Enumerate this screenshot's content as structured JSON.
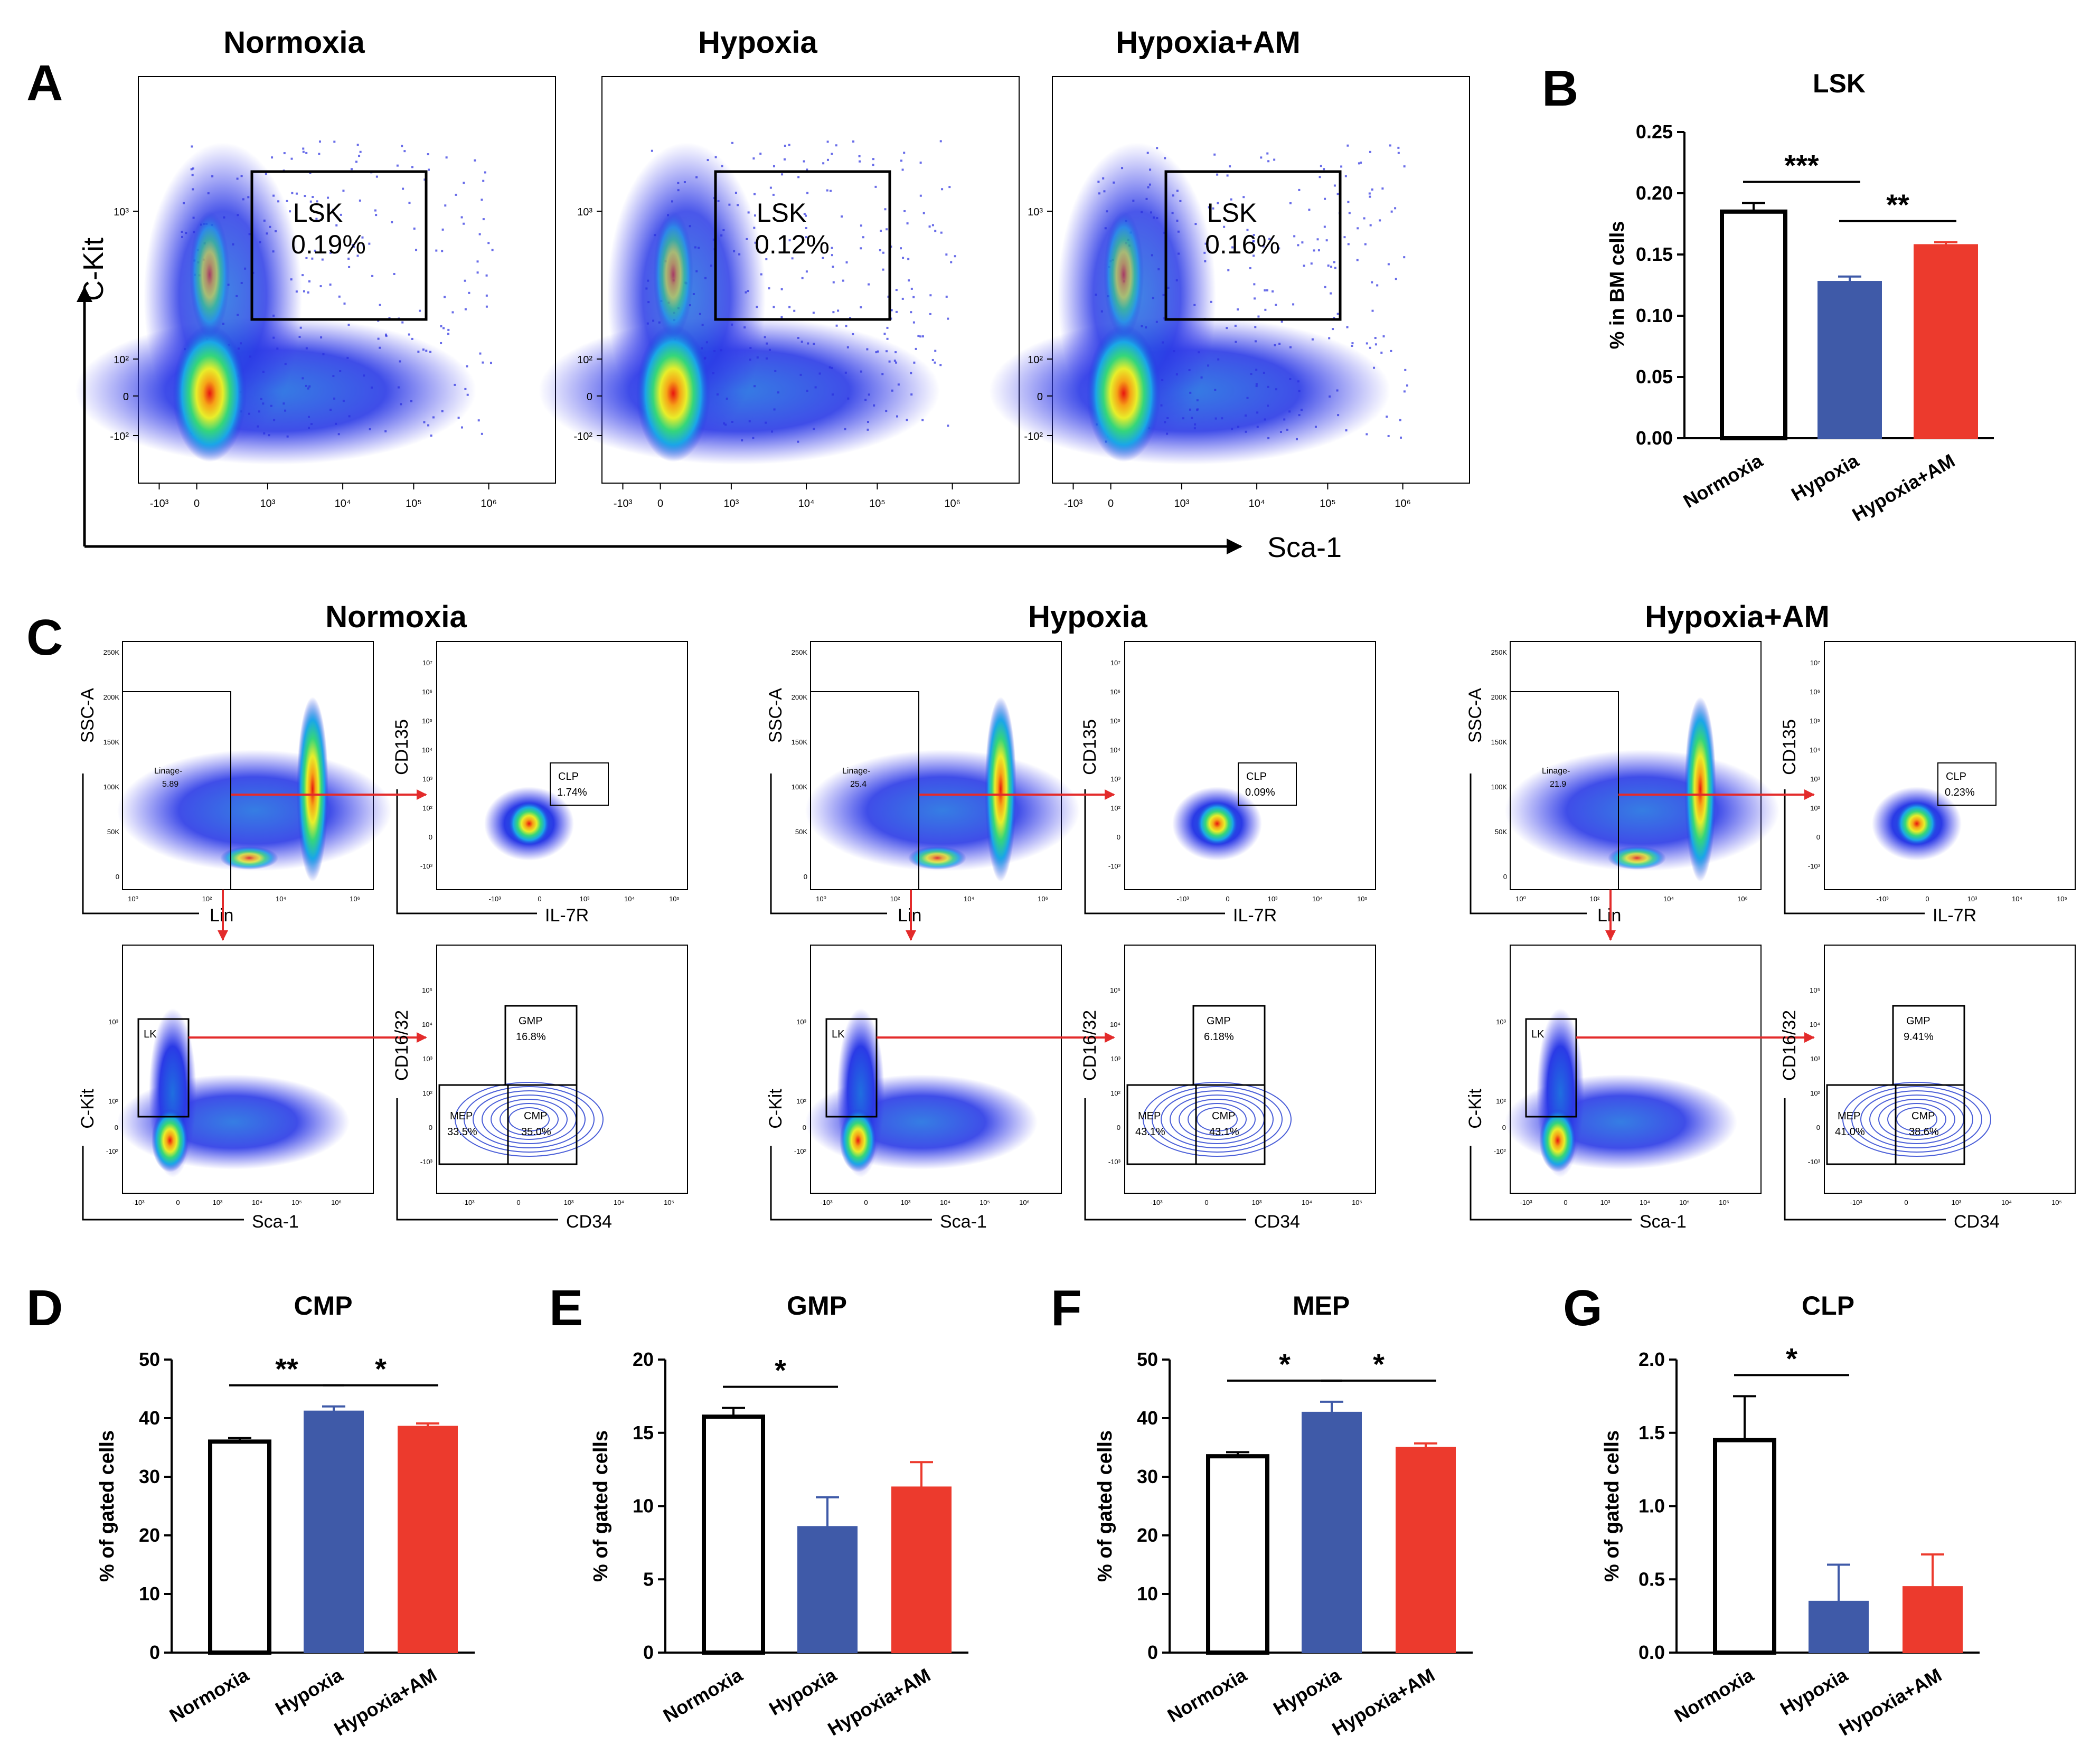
{
  "figure": {
    "panels": [
      "A",
      "B",
      "C",
      "D",
      "E",
      "F",
      "G"
    ],
    "colors": {
      "normoxia": "#ffffff",
      "hypoxia": "#3f5aa8",
      "hypoxia_am": "#ec3a2d",
      "gate_arrow": "#e32b2b",
      "contour": "#4b5fd8"
    }
  },
  "panel_a": {
    "letter": "A",
    "x_axis_label": "Sca-1",
    "y_axis_label": "C-Kit",
    "x_ticks": [
      "-10³",
      "0",
      "10³",
      "10⁴",
      "10⁵",
      "10⁶"
    ],
    "y_ticks": [
      "10³",
      "10²",
      "0",
      "-10²"
    ],
    "plots": [
      {
        "title": "Normoxia",
        "gate_name": "LSK",
        "gate_value": "0.19%"
      },
      {
        "title": "Hypoxia",
        "gate_name": "LSK",
        "gate_value": "0.12%"
      },
      {
        "title": "Hypoxia+AM",
        "gate_name": "LSK",
        "gate_value": "0.16%"
      }
    ]
  },
  "panel_c": {
    "letter": "C",
    "groups": [
      {
        "title": "Normoxia",
        "lineage_value": "5.89",
        "clp": "1.74%",
        "gmp": "16.8%",
        "mep": "33.5%",
        "cmp": "35.0%"
      },
      {
        "title": "Hypoxia",
        "lineage_value": "25.4",
        "clp": "0.09%",
        "gmp": "6.18%",
        "mep": "43.1%",
        "cmp": "43.1%"
      },
      {
        "title": "Hypoxia+AM",
        "lineage_value": "21.9",
        "clp": "0.23%",
        "gmp": "9.41%",
        "mep": "41.0%",
        "cmp": "38.6%"
      }
    ],
    "labels": {
      "ssc": "SSC-A",
      "lin": "Lin",
      "cd135": "CD135",
      "il7r": "IL-7R",
      "ckit": "C-Kit",
      "sca1": "Sca-1",
      "cd1632": "CD16/32",
      "cd34": "CD34",
      "lineage_gate": "Linage-",
      "clp_gate": "CLP",
      "lk_gate": "LK",
      "gmp_gate": "GMP",
      "mep_gate": "MEP",
      "cmp_gate": "CMP"
    },
    "ssc_ticks": [
      "250K",
      "200K",
      "150K",
      "100K",
      "50K",
      "0"
    ],
    "lin_ticks": [
      "10⁰",
      "10²",
      "10⁴",
      "10⁶"
    ],
    "log_y_ticks": [
      "10⁷",
      "10⁶",
      "10⁵",
      "10⁴",
      "10³",
      "10²",
      "0",
      "-10³"
    ],
    "log_x_ticks": [
      "-10³",
      "0",
      "10³",
      "10⁴",
      "10⁵"
    ],
    "ckit_ticks": [
      "10³",
      "10²",
      "0",
      "-10²"
    ],
    "sca_ticks": [
      "-10³",
      "0",
      "10³",
      "10⁴",
      "10⁵",
      "10⁶"
    ]
  },
  "chart_data": [
    {
      "panel": "B",
      "type": "bar",
      "title": "LSK",
      "categories": [
        "Normoxia",
        "Hypoxia",
        "Hypoxia+AM"
      ],
      "values": [
        0.185,
        0.128,
        0.158
      ],
      "errors": [
        0.007,
        0.004,
        0.002
      ],
      "ylabel": "% in BM cells",
      "ylim": [
        0,
        0.25
      ],
      "yticks": [
        "0.00",
        "0.05",
        "0.10",
        "0.15",
        "0.20",
        "0.25"
      ],
      "significance": [
        {
          "from": 0,
          "to": 1,
          "label": "***"
        },
        {
          "from": 1,
          "to": 2,
          "label": "**"
        }
      ]
    },
    {
      "panel": "D",
      "type": "bar",
      "title": "CMP",
      "categories": [
        "Normoxia",
        "Hypoxia",
        "Hypoxia+AM"
      ],
      "values": [
        36.0,
        41.2,
        38.6
      ],
      "errors": [
        0.6,
        0.8,
        0.5
      ],
      "ylabel": "% of gated cells",
      "ylim": [
        0,
        50
      ],
      "yticks": [
        "0",
        "10",
        "20",
        "30",
        "40",
        "50"
      ],
      "significance": [
        {
          "from": 0,
          "to": 1,
          "label": "**"
        },
        {
          "from": 1,
          "to": 2,
          "label": "*"
        }
      ]
    },
    {
      "panel": "E",
      "type": "bar",
      "title": "GMP",
      "categories": [
        "Normoxia",
        "Hypoxia",
        "Hypoxia+AM"
      ],
      "values": [
        16.1,
        8.6,
        11.3
      ],
      "errors": [
        0.6,
        2.0,
        1.7
      ],
      "ylabel": "% of gated cells",
      "ylim": [
        0,
        20
      ],
      "yticks": [
        "0",
        "5",
        "10",
        "15",
        "20"
      ],
      "significance": [
        {
          "from": 0,
          "to": 1,
          "label": "*"
        }
      ]
    },
    {
      "panel": "F",
      "type": "bar",
      "title": "MEP",
      "categories": [
        "Normoxia",
        "Hypoxia",
        "Hypoxia+AM"
      ],
      "values": [
        33.5,
        41.0,
        35.0
      ],
      "errors": [
        0.7,
        1.8,
        0.7
      ],
      "ylabel": "% of gated cells",
      "ylim": [
        0,
        50
      ],
      "yticks": [
        "0",
        "10",
        "20",
        "30",
        "40",
        "50"
      ],
      "significance": [
        {
          "from": 0,
          "to": 1,
          "label": "*"
        },
        {
          "from": 1,
          "to": 2,
          "label": "*"
        }
      ]
    },
    {
      "panel": "G",
      "type": "bar",
      "title": "CLP",
      "categories": [
        "Normoxia",
        "Hypoxia",
        "Hypoxia+AM"
      ],
      "values": [
        1.45,
        0.35,
        0.45
      ],
      "errors": [
        0.3,
        0.25,
        0.22
      ],
      "ylabel": "% of gated cells",
      "ylim": [
        0,
        2.0
      ],
      "yticks": [
        "0.0",
        "0.5",
        "1.0",
        "1.5",
        "2.0"
      ],
      "significance": [
        {
          "from": 0,
          "to": 1,
          "label": "*"
        }
      ]
    }
  ]
}
